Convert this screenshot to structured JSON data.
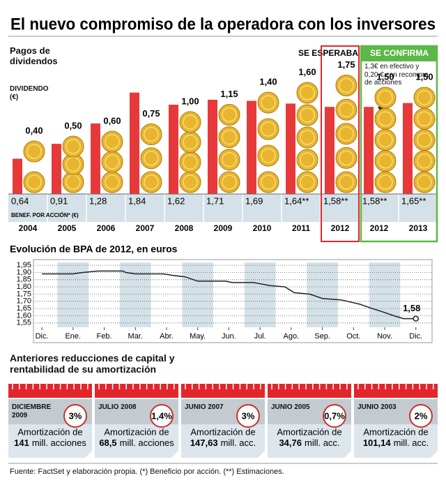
{
  "title": "El nuevo compromiso de la operadora con los inversores",
  "chart_data": [
    {
      "type": "bar",
      "subtitle": "Pagos de dividendos",
      "y_label": "DIVIDENDO (€)",
      "eps_label": "BENEF. POR ACCIÓN* (€)",
      "expected_label": "SE ESPERABA",
      "confirmed_label": "SE CONFIRMA",
      "annotation": "1,3€ en efectivo y 0,20 € con recompra de acciones",
      "categories": [
        "2004",
        "2005",
        "2006",
        "2007",
        "2008",
        "2009",
        "2010",
        "2011",
        "2012",
        "2012",
        "2013"
      ],
      "series": [
        {
          "color": "#e8b52e",
          "values": [
            0.4,
            0.5,
            0.6,
            0.75,
            1.0,
            1.15,
            1.4,
            1.6,
            1.75,
            1.5,
            1.5
          ],
          "value_labels": [
            "0,40",
            "0,50",
            "0,60",
            "0,75",
            "1,00",
            "1,15",
            "1,40",
            "1,60",
            "1,75",
            "1,50",
            "1,50"
          ]
        },
        {
          "color": "#e8393a",
          "values": [
            0.64,
            0.91,
            1.28,
            1.84,
            1.62,
            1.71,
            1.69,
            1.64,
            1.58,
            1.58,
            1.65
          ],
          "value_labels": [
            "0,64",
            "0,91",
            "1,28",
            "1,84",
            "1,62",
            "1,71",
            "1,69",
            "1,64**",
            "1,58**",
            "1,58**",
            "1,65**"
          ]
        }
      ]
    },
    {
      "type": "line",
      "title": "Evolución de BPA de 2012, en euros",
      "xlim": [
        -0.27,
        12.52
      ],
      "xticks": [
        {
          "value": 0,
          "label": "Dic."
        },
        {
          "value": 1,
          "label": "Ene."
        },
        {
          "value": 2,
          "label": "Feb."
        },
        {
          "value": 3,
          "label": "Mar."
        },
        {
          "value": 4,
          "label": "Abr."
        },
        {
          "value": 5,
          "label": "May."
        },
        {
          "value": 6,
          "label": "Jun."
        },
        {
          "value": 7,
          "label": "Jul."
        },
        {
          "value": 8,
          "label": "Ago."
        },
        {
          "value": 9,
          "label": "Sep."
        },
        {
          "value": 10,
          "label": "Oct."
        },
        {
          "value": 11,
          "label": "Nov."
        },
        {
          "value": 12,
          "label": "Dic."
        }
      ],
      "ylim": [
        1.52,
        1.97
      ],
      "yticks": [
        {
          "value": 1.55,
          "label": "1,55"
        },
        {
          "value": 1.6,
          "label": "1,60"
        },
        {
          "value": 1.65,
          "label": "1,65"
        },
        {
          "value": 1.7,
          "label": "1,70"
        },
        {
          "value": 1.75,
          "label": "1,75"
        },
        {
          "value": 1.8,
          "label": "1,80"
        },
        {
          "value": 1.85,
          "label": "1,85"
        },
        {
          "value": 1.9,
          "label": "1,90"
        },
        {
          "value": 1.95,
          "label": "1,95"
        }
      ],
      "grid": true,
      "x": [
        0,
        1,
        1.3,
        1.8,
        2.6,
        2.7,
        3.0,
        3.9,
        4.2,
        4.6,
        5.0,
        5.9,
        6.1,
        6.8,
        7.3,
        7.8,
        8.1,
        8.6,
        9.0,
        9.6,
        10.2,
        10.6,
        10.9,
        11.3,
        11.6,
        12.0
      ],
      "series": [
        {
          "color": "#222222",
          "values": [
            1.89,
            1.89,
            1.9,
            1.91,
            1.91,
            1.9,
            1.89,
            1.89,
            1.88,
            1.87,
            1.84,
            1.84,
            1.83,
            1.83,
            1.81,
            1.8,
            1.76,
            1.75,
            1.72,
            1.71,
            1.68,
            1.65,
            1.63,
            1.6,
            1.58,
            1.58
          ]
        }
      ],
      "end_label": "1,58"
    }
  ],
  "reductions": {
    "title": "Anteriores reducciones de capital y rentabilidad de su amortización",
    "items": [
      {
        "date": "DICIEMBRE 2009",
        "pct": "3%",
        "label": "Amortización de",
        "amount": "141",
        "unit": "mill. acciones"
      },
      {
        "date": "JULIO 2008",
        "pct": "1,4%",
        "label": "Amortización de",
        "amount": "68,5",
        "unit": "mill. acciones"
      },
      {
        "date": "JUNIO 2007",
        "pct": "3%",
        "label": "Amortización de",
        "amount": "147,63",
        "unit": "mill. acc."
      },
      {
        "date": "JUNIO 2005",
        "pct": "0,7%",
        "label": "Amortización de",
        "amount": "34,76",
        "unit": "mill. acc."
      },
      {
        "date": "JUNIO 2003",
        "pct": "2%",
        "label": "Amortización de",
        "amount": "101,14",
        "unit": "mill. acc."
      }
    ]
  },
  "source": "Fuente: FactSet y elaboración propia. (*) Beneficio por acción. (**) Estimaciones."
}
